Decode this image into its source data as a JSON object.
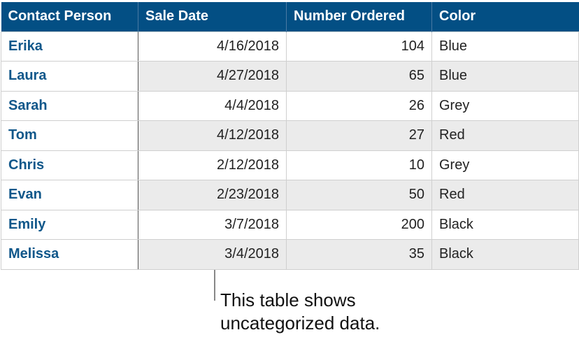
{
  "table": {
    "headers": [
      "Contact Person",
      "Sale Date",
      "Number Ordered",
      "Color"
    ],
    "header_color": "#034f84",
    "rows": [
      [
        "Erika",
        "4/16/2018",
        "104",
        "Blue"
      ],
      [
        "Laura",
        "4/27/2018",
        "65",
        "Blue"
      ],
      [
        "Sarah",
        "4/4/2018",
        "26",
        "Grey"
      ],
      [
        "Tom",
        "4/12/2018",
        "27",
        "Red"
      ],
      [
        "Chris",
        "2/12/2018",
        "10",
        "Grey"
      ],
      [
        "Evan",
        "2/23/2018",
        "50",
        "Red"
      ],
      [
        "Emily",
        "3/7/2018",
        "200",
        "Black"
      ],
      [
        "Melissa",
        "3/4/2018",
        "35",
        "Black"
      ]
    ]
  },
  "callout": {
    "line1": "This table shows",
    "line2": "uncategorized data."
  }
}
